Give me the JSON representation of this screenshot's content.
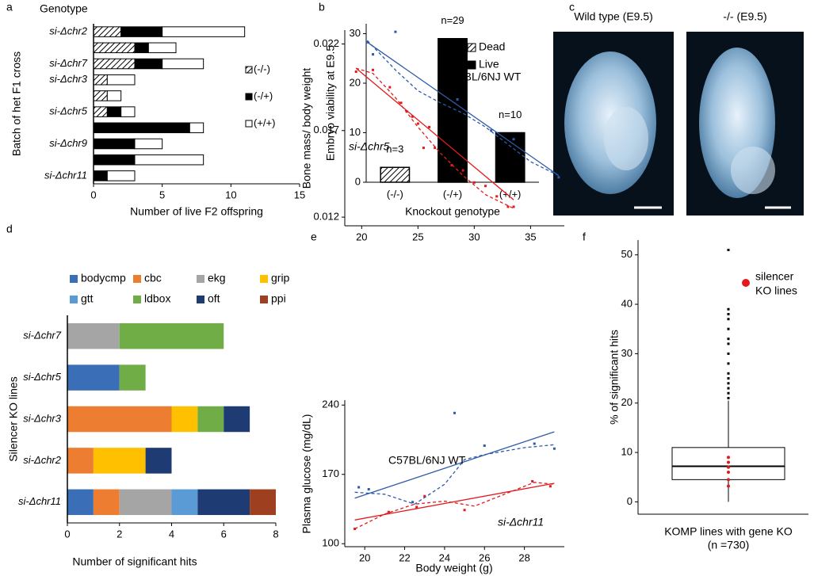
{
  "chart_data": [
    {
      "type": "bar",
      "panel": "a",
      "title": "Genotype",
      "orientation": "horizontal",
      "stacked": true,
      "categories": [
        "si-Δchr2",
        null,
        "si-Δchr7",
        "si-Δchr3",
        null,
        "si-Δchr5",
        null,
        "si-Δchr9",
        null,
        "si-Δchr11"
      ],
      "series": [
        {
          "name": "(-/-)",
          "color": "#ffffff",
          "hatch": true,
          "values": [
            2,
            3,
            3,
            1,
            1,
            1,
            0,
            0,
            0,
            0
          ]
        },
        {
          "name": "(-/+)",
          "color": "#000000",
          "values": [
            3,
            1,
            2,
            0,
            0,
            1,
            7,
            3,
            3,
            1
          ]
        },
        {
          "name": "(+/+)",
          "color": "#ffffff",
          "values": [
            6,
            2,
            3,
            2,
            1,
            1,
            1,
            2,
            5,
            2
          ]
        }
      ],
      "xlim": [
        0,
        15
      ],
      "xticks": [
        0,
        5,
        10,
        15
      ],
      "x_label": "Number of live F2 offspring",
      "y_label": "Batch of het F1 cross",
      "legend": "right"
    },
    {
      "type": "bar",
      "panel": "b",
      "orientation": "vertical",
      "categories": [
        "(-/-)",
        "(-/+)",
        "(+/+)"
      ],
      "series": [
        {
          "name": "Dead",
          "color": "#ffffff",
          "hatch": true,
          "values": [
            3,
            null,
            null
          ],
          "value_labels": [
            "n=3",
            null,
            null
          ]
        },
        {
          "name": "Live",
          "color": "#000000",
          "values": [
            null,
            29,
            10
          ],
          "value_labels": [
            null,
            "n=29",
            "n=10"
          ]
        }
      ],
      "ylim": [
        0,
        32
      ],
      "yticks": [
        0,
        10,
        20,
        30
      ],
      "x_label": "Knockout genotype",
      "y_label": "Embryo viability at E9.5",
      "legend": "top-right"
    },
    {
      "type": "image",
      "panel": "c",
      "images": [
        "Wild type (E9.5)",
        "-/- (E9.5)"
      ]
    },
    {
      "type": "bar",
      "panel": "d",
      "orientation": "horizontal",
      "stacked": true,
      "categories": [
        "si-Δchr7",
        "si-Δchr5",
        "si-Δchr3",
        "si-Δchr2",
        "si-Δchr11"
      ],
      "series": [
        {
          "name": "bodycmp",
          "color": "#3a6fb7",
          "values": [
            0,
            2,
            0,
            0,
            1
          ]
        },
        {
          "name": "cbc",
          "color": "#ed7d31",
          "values": [
            0,
            0,
            4,
            1,
            1
          ]
        },
        {
          "name": "ekg",
          "color": "#a5a5a5",
          "values": [
            2,
            0,
            0,
            0,
            2
          ]
        },
        {
          "name": "grip",
          "color": "#ffc000",
          "values": [
            0,
            0,
            1,
            2,
            0
          ]
        },
        {
          "name": "gtt",
          "color": "#5b9bd5",
          "values": [
            0,
            0,
            0,
            0,
            1
          ]
        },
        {
          "name": "ldbox",
          "color": "#70ad47",
          "values": [
            4,
            1,
            1,
            0,
            0
          ]
        },
        {
          "name": "oft",
          "color": "#1f3b73",
          "values": [
            0,
            0,
            1,
            1,
            2
          ]
        },
        {
          "name": "ppi",
          "color": "#9e3f1f",
          "values": [
            0,
            0,
            0,
            0,
            1
          ]
        }
      ],
      "xlim": [
        0,
        8
      ],
      "xticks": [
        0,
        2,
        4,
        6,
        8
      ],
      "x_label": "Number of significant  hits",
      "y_label": "Silencer KO lines",
      "legend": "top"
    },
    {
      "type": "scatter",
      "panel": "e",
      "xlim": [
        18.5,
        38
      ],
      "xticks": [
        20,
        25,
        30,
        35
      ],
      "ylim": [
        0.0115,
        0.0228
      ],
      "yticks": [
        0.012,
        0.017,
        0.022
      ],
      "y_label": "Bone mass/ body weight",
      "annotations": [
        {
          "text": "C57BL/6NJ WT",
          "color": "#000000"
        },
        {
          "text": "si-Δchr5",
          "color": "#e31a1c",
          "italic": true
        }
      ],
      "series": [
        {
          "style": "points",
          "color": "#2f5aa8",
          "x": [
            20.5,
            21,
            23,
            28.5,
            31.5,
            33.5,
            37.5
          ],
          "values": [
            0.0221,
            0.0214,
            0.0227,
            0.0188,
            0.017,
            0.0165,
            0.0143
          ]
        },
        {
          "style": "points",
          "color": "#e31a1c",
          "x": [
            19.5,
            21,
            22.5,
            23.5,
            24,
            24.5,
            25,
            25.5,
            26,
            26.5,
            28,
            29,
            30,
            31,
            32,
            33,
            33.5
          ],
          "values": [
            0.0204,
            0.0205,
            0.0195,
            0.0186,
            0.0181,
            0.0178,
            0.0174,
            0.016,
            0.0172,
            0.016,
            0.015,
            0.0147,
            0.014,
            0.0138,
            0.0132,
            0.0126,
            0.0126
          ]
        },
        {
          "style": "solid",
          "color": "#2f5aa8",
          "x": [
            20.5,
            37.5
          ],
          "values": [
            0.0221,
            0.0144
          ]
        },
        {
          "style": "solid",
          "color": "#e31a1c",
          "x": [
            19.5,
            33.5
          ],
          "values": [
            0.0206,
            0.013
          ]
        },
        {
          "style": "dashed",
          "color": "#2f5aa8",
          "x": [
            20.5,
            23,
            25,
            27,
            29,
            31,
            33,
            35,
            37.5
          ],
          "values": [
            0.0222,
            0.0205,
            0.0193,
            0.0186,
            0.018,
            0.0172,
            0.0162,
            0.0152,
            0.0144
          ]
        },
        {
          "style": "dashed",
          "color": "#e31a1c",
          "x": [
            19.5,
            21,
            23,
            25,
            27,
            29,
            31,
            33.5
          ],
          "values": [
            0.0206,
            0.0203,
            0.0189,
            0.0172,
            0.0157,
            0.0144,
            0.0133,
            0.0125
          ]
        }
      ]
    },
    {
      "type": "scatter",
      "xlim": [
        19,
        30
      ],
      "xticks": [
        20,
        22,
        24,
        26,
        28
      ],
      "ylim": [
        97,
        245
      ],
      "yticks": [
        100,
        170,
        240
      ],
      "x_label": "Body weight (g)",
      "y_label": "Plasma glucose (mg/dL)",
      "annotations": [
        {
          "text": "C57BL/6NJ WT",
          "color": "#000000"
        },
        {
          "text": "si-Δchr11",
          "color": "#e31a1c",
          "italic": true
        }
      ],
      "series": [
        {
          "style": "points",
          "color": "#2f5aa8",
          "x": [
            19.7,
            20.2,
            22.4,
            24.5,
            26,
            28.5,
            29.5
          ],
          "values": [
            157,
            155,
            142,
            232,
            199,
            201,
            196
          ]
        },
        {
          "style": "points",
          "color": "#e31a1c",
          "x": [
            19.5,
            21.2,
            22.6,
            23,
            25,
            28.4,
            29.3
          ],
          "values": [
            115,
            132,
            137,
            148,
            134,
            163,
            158
          ]
        },
        {
          "style": "solid",
          "color": "#2f5aa8",
          "x": [
            19.5,
            29.5
          ],
          "values": [
            146,
            213
          ]
        },
        {
          "style": "solid",
          "color": "#e31a1c",
          "x": [
            19.5,
            29.5
          ],
          "values": [
            124,
            161
          ]
        },
        {
          "style": "dashed",
          "color": "#2f5aa8",
          "x": [
            19.5,
            21,
            22.5,
            24,
            25,
            26,
            28,
            29.5
          ],
          "values": [
            152,
            150,
            140,
            160,
            185,
            190,
            197,
            200
          ]
        },
        {
          "style": "dashed",
          "color": "#e31a1c",
          "x": [
            19.5,
            21,
            22.5,
            24,
            25.5,
            27,
            28.5,
            29.5
          ],
          "values": [
            115,
            130,
            140,
            143,
            138,
            150,
            162,
            160
          ]
        }
      ]
    },
    {
      "type": "box",
      "panel": "f",
      "ylim": [
        -2.5,
        53
      ],
      "yticks": [
        0,
        10,
        20,
        30,
        40,
        50
      ],
      "y_label": "% of significant hits",
      "x_label_lines": [
        "KOMP lines with gene KO",
        "(n =730)"
      ],
      "box": {
        "whisker_low": 0,
        "q1": 4.5,
        "median": 7.2,
        "q3": 11,
        "whisker_high": 20.5
      },
      "outliers": [
        21,
        22,
        23,
        24,
        25,
        26,
        28,
        30,
        32,
        33,
        35,
        37,
        38,
        39,
        51
      ],
      "points": {
        "label_lines": [
          "silencer",
          "KO lines"
        ],
        "color": "#e31a1c",
        "values": [
          3.2,
          4.5,
          6,
          7,
          8,
          9
        ]
      }
    }
  ]
}
